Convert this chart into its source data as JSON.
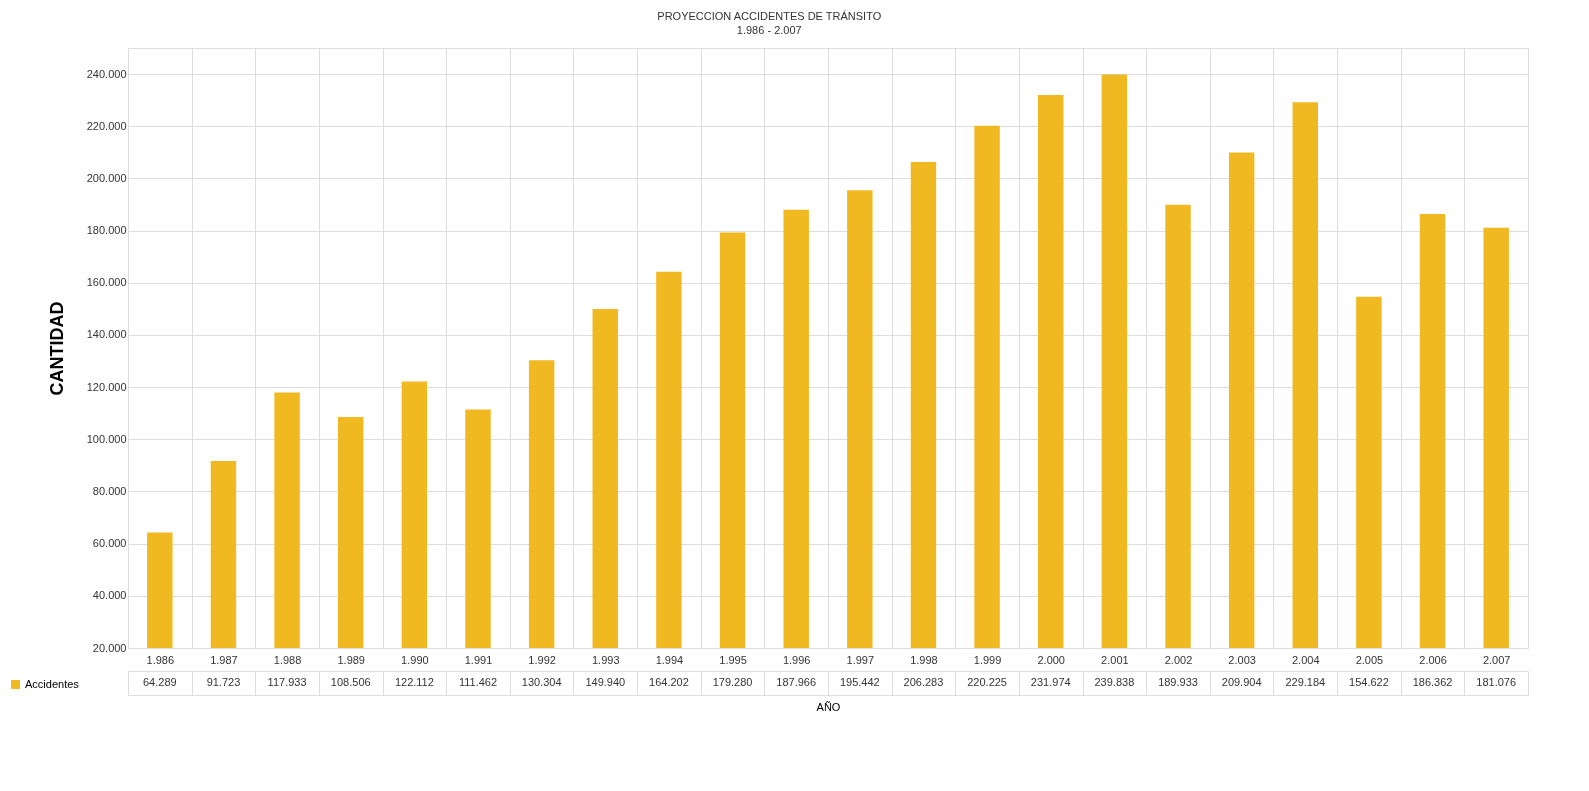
{
  "chart_data": {
    "type": "bar",
    "title": "PROYECCION ACCIDENTES DE TRÁNSITO",
    "subtitle": "1.986 - 2.007",
    "xlabel": "AÑO",
    "ylabel": "CANTIDAD",
    "categories": [
      "1.986",
      "1.987",
      "1.988",
      "1.989",
      "1.990",
      "1.991",
      "1.992",
      "1.993",
      "1.994",
      "1.995",
      "1.996",
      "1.997",
      "1.998",
      "1.999",
      "2.000",
      "2.001",
      "2.002",
      "2.003",
      "2.004",
      "2.005",
      "2.006",
      "2.007"
    ],
    "series": [
      {
        "name": "Accidentes",
        "color": "#f0b921",
        "values": [
          64289,
          91723,
          117933,
          108506,
          122112,
          111462,
          130304,
          149940,
          164202,
          179280,
          187966,
          195442,
          206283,
          220225,
          231974,
          239838,
          189933,
          209904,
          229184,
          154622,
          186362,
          181076
        ],
        "value_labels": [
          "64.289",
          "91.723",
          "117.933",
          "108.506",
          "122.112",
          "111.462",
          "130.304",
          "149.940",
          "164.202",
          "179.280",
          "187.966",
          "195.442",
          "206.283",
          "220.225",
          "231.974",
          "239.838",
          "189.933",
          "209.904",
          "229.184",
          "154.622",
          "186.362",
          "181.076"
        ]
      }
    ],
    "ylim": [
      20000,
      250000
    ],
    "yticks": [
      {
        "value": 20000,
        "label": "20.000"
      },
      {
        "value": 40000,
        "label": "40.000"
      },
      {
        "value": 60000,
        "label": "60.000"
      },
      {
        "value": 80000,
        "label": "80.000"
      },
      {
        "value": 100000,
        "label": "100.000"
      },
      {
        "value": 120000,
        "label": "120.000"
      },
      {
        "value": 140000,
        "label": "140.000"
      },
      {
        "value": 160000,
        "label": "160.000"
      },
      {
        "value": 180000,
        "label": "180.000"
      },
      {
        "value": 200000,
        "label": "200.000"
      },
      {
        "value": 220000,
        "label": "220.000"
      },
      {
        "value": 240000,
        "label": "240.000"
      }
    ],
    "grid": true,
    "legend": "bottom left"
  }
}
